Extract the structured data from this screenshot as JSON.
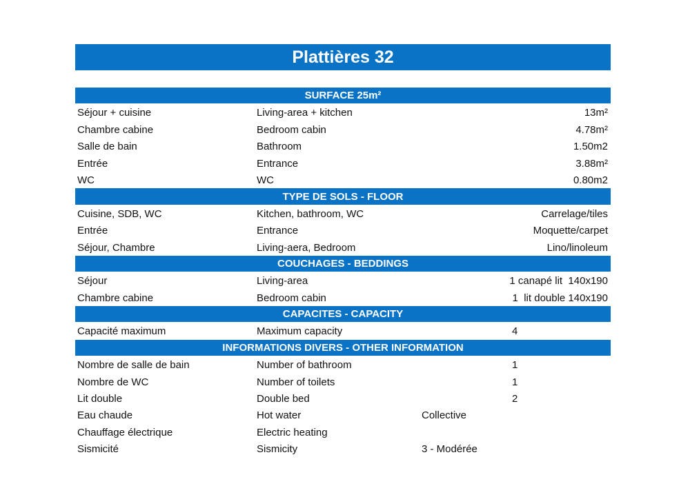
{
  "title": "Plattières 32",
  "accent_color": "#0B73C6",
  "sections": [
    {
      "header": "SURFACE 25m²",
      "rows": [
        {
          "fr": "Séjour + cuisine",
          "en": "Living-area + kitchen",
          "value": "13m²"
        },
        {
          "fr": "Chambre cabine",
          "en": "Bedroom cabin",
          "value": "4.78m²"
        },
        {
          "fr": "Salle de bain",
          "en": "Bathroom",
          "value": "1.50m2"
        },
        {
          "fr": "Entrée",
          "en": "Entrance",
          "value": "3.88m²"
        },
        {
          "fr": "WC",
          "en": "WC",
          "value": "0.80m2"
        }
      ]
    },
    {
      "header": "TYPE DE SOLS - FLOOR",
      "rows": [
        {
          "fr": "Cuisine, SDB, WC",
          "en": "Kitchen, bathroom, WC",
          "value": "Carrelage/tiles"
        },
        {
          "fr": "Entrée",
          "en": "Entrance",
          "value": "Moquette/carpet"
        },
        {
          "fr": "Séjour, Chambre",
          "en": "Living-aera, Bedroom",
          "value": "Lino/linoleum"
        }
      ]
    },
    {
      "header": "COUCHAGES - BEDDINGS",
      "rows": [
        {
          "fr": "Séjour",
          "en": "Living-area",
          "value": "1 canapé lit  140x190"
        },
        {
          "fr": "Chambre cabine",
          "en": "Bedroom cabin",
          "value": "1  lit double 140x190"
        }
      ]
    },
    {
      "header": "CAPACITES - CAPACITY",
      "rows": [
        {
          "fr": "Capacité maximum",
          "en": "Maximum capacity",
          "count": "4"
        }
      ]
    },
    {
      "header": "INFORMATIONS DIVERS - OTHER INFORMATION",
      "rows": [
        {
          "fr": "Nombre de salle de bain",
          "en": "Number of bathroom",
          "count": "1"
        },
        {
          "fr": "Nombre de WC",
          "en": "Number of toilets",
          "count": "1"
        },
        {
          "fr": "Lit double",
          "en": "Double bed",
          "count": "2"
        },
        {
          "fr": "Eau chaude",
          "en": "Hot water",
          "note": "Collective"
        },
        {
          "fr": "Chauffage électrique",
          "en": "Electric heating"
        },
        {
          "fr": "Sismicité",
          "en": "Sismicity",
          "note": "3 - Modérée"
        }
      ]
    }
  ]
}
